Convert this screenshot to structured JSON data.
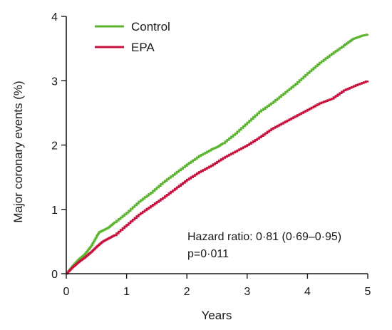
{
  "chart_data": {
    "type": "line",
    "xlabel": "Years",
    "ylabel": "Major coronary events (%)",
    "xlim": [
      0,
      5
    ],
    "ylim": [
      0,
      4
    ],
    "xticks": [
      "0",
      "1",
      "2",
      "3",
      "4",
      "5"
    ],
    "yticks": [
      "0",
      "1",
      "2",
      "3",
      "4"
    ],
    "grid": false,
    "legend_position": "top-left",
    "series": [
      {
        "name": "Control",
        "color": "#5cb531",
        "x": [
          0,
          0.1,
          0.2,
          0.3,
          0.4,
          0.5,
          0.55,
          0.7,
          0.8,
          1.0,
          1.2,
          1.4,
          1.6,
          1.8,
          2.0,
          2.2,
          2.4,
          2.5,
          2.6,
          2.8,
          3.0,
          3.2,
          3.4,
          3.6,
          3.8,
          4.0,
          4.2,
          4.4,
          4.6,
          4.75,
          4.9,
          5.0
        ],
        "y": [
          0,
          0.12,
          0.22,
          0.3,
          0.42,
          0.58,
          0.65,
          0.72,
          0.8,
          0.95,
          1.12,
          1.26,
          1.42,
          1.56,
          1.7,
          1.83,
          1.93,
          1.97,
          2.03,
          2.18,
          2.35,
          2.52,
          2.65,
          2.8,
          2.95,
          3.12,
          3.28,
          3.42,
          3.55,
          3.65,
          3.7,
          3.72
        ]
      },
      {
        "name": "EPA",
        "color": "#c8103e",
        "x": [
          0,
          0.1,
          0.2,
          0.3,
          0.4,
          0.5,
          0.6,
          0.7,
          0.8,
          1.0,
          1.2,
          1.4,
          1.6,
          1.8,
          2.0,
          2.2,
          2.4,
          2.6,
          2.8,
          3.0,
          3.2,
          3.4,
          3.6,
          3.8,
          4.0,
          4.2,
          4.4,
          4.6,
          4.8,
          5.0
        ],
        "y": [
          0,
          0.1,
          0.18,
          0.25,
          0.33,
          0.42,
          0.5,
          0.55,
          0.6,
          0.76,
          0.92,
          1.05,
          1.18,
          1.32,
          1.46,
          1.58,
          1.68,
          1.8,
          1.9,
          2.0,
          2.12,
          2.25,
          2.35,
          2.45,
          2.55,
          2.65,
          2.72,
          2.85,
          2.93,
          3.0
        ]
      }
    ],
    "annotations": [
      "Hazard ratio: 0·81 (0·69–0·95)",
      "p=0·011"
    ]
  }
}
